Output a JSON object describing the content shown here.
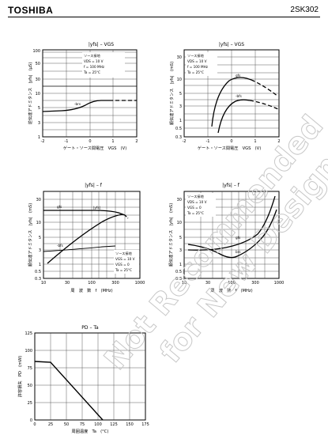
{
  "header": {
    "company": "TOSHIBA",
    "part_number": "2SK302"
  },
  "watermark": {
    "line1": "Not Recommended",
    "line2": "for New Design"
  },
  "charts": [
    {
      "id": "c1",
      "title": "|yfs| – VGS",
      "xlabel": "ゲート・ソース間電圧　VGS　(V)",
      "ylabel": "逆伝達アドミタンス　|yfs|　(μS)",
      "xticks": [
        "-2",
        "-1",
        "0",
        "1",
        "2"
      ],
      "yticks": [
        "100",
        "50",
        "30",
        "10",
        "5",
        "3",
        "1"
      ],
      "conditions": [
        "ソース接地",
        "VDS = 10 V",
        "f = 100 MHz",
        "Ta = 25°C"
      ],
      "series_labels": [
        "-brs"
      ]
    },
    {
      "id": "c2",
      "title": "|yfs| – VGS",
      "xlabel": "ゲート・ソース間電圧　VGS　(V)",
      "ylabel": "順伝達アドミタンス　|yfs|　(mS)",
      "xticks": [
        "-2",
        "-1",
        "0",
        "1",
        "2"
      ],
      "yticks": [
        "30",
        "10",
        "5",
        "3",
        "1",
        "0.5",
        "0.3"
      ],
      "conditions": [
        "ソース接地",
        "VDS = 10 V",
        "f = 100 MHz",
        "Ta = 25°C"
      ],
      "series_labels": [
        "gfs",
        "-bfs"
      ]
    },
    {
      "id": "c3",
      "title": "|yfs| – f",
      "xlabel": "周　波　数　f　(MHz)",
      "ylabel": "順伝達アドミタンス　|yfs|　(mS)",
      "xticks": [
        "10",
        "30",
        "100",
        "300",
        "1000"
      ],
      "yticks": [
        "30",
        "10",
        "5",
        "3",
        "1",
        "0.5",
        "0.3"
      ],
      "conditions": [
        "ソース接地",
        "VGS = 10 V",
        "VGS = 0",
        "Ta = 25°C"
      ],
      "series_labels": [
        "gfs",
        "|yfs|",
        "-bfs"
      ]
    },
    {
      "id": "c4",
      "title": "|yfs| – f",
      "xlabel": "周　波　数　f　(MHz)",
      "ylabel": "順伝達アドミタンス　|yfs|　(mS)",
      "xticks": [
        "10",
        "30",
        "100",
        "300",
        "1000"
      ],
      "yticks": [
        "30",
        "10",
        "5",
        "3",
        "1",
        "0.5",
        "0.3"
      ],
      "conditions": [
        "ソース接地",
        "VDS = 10 V",
        "VGS = 0",
        "Ta = 25°C"
      ],
      "series_labels": [
        "gfs",
        "brs"
      ]
    },
    {
      "id": "c5",
      "title": "PD – Ta",
      "xlabel": "周囲温度　Ta　(°C)",
      "ylabel": "許容損失　PD　(mW)",
      "xticks": [
        "0",
        "25",
        "50",
        "75",
        "100",
        "125",
        "150",
        "175"
      ],
      "yticks": [
        "125",
        "100",
        "75",
        "50",
        "25",
        "0"
      ]
    }
  ],
  "colors": {
    "ink": "#000000",
    "grid": "#333333",
    "watermark": "#d0d0d0"
  }
}
